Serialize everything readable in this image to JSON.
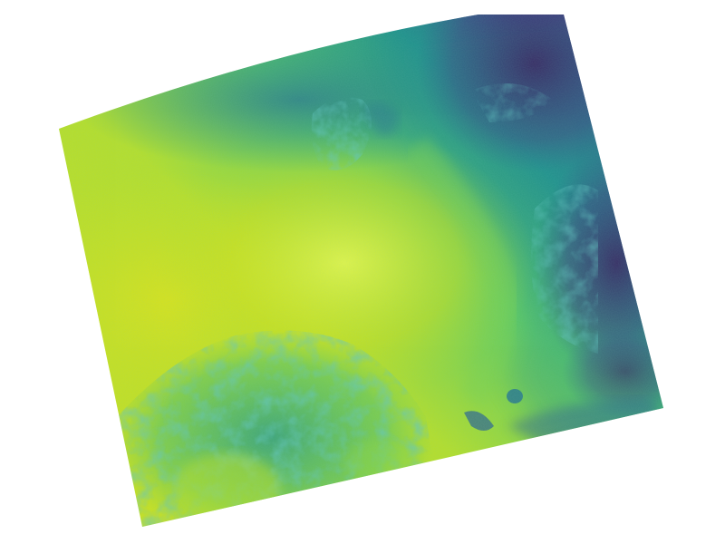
{
  "figure": {
    "kind": "rotated-raster-map",
    "colormap": "viridis",
    "palette": {
      "background": "#ffffff",
      "dark_purple": "#440154",
      "indigo": "#3b2f7a",
      "blue": "#31688e",
      "teal": "#21918c",
      "green": "#35b779",
      "lime": "#90d743",
      "yellow": "#fde725",
      "bright_yellow": "#e3f54a"
    }
  }
}
